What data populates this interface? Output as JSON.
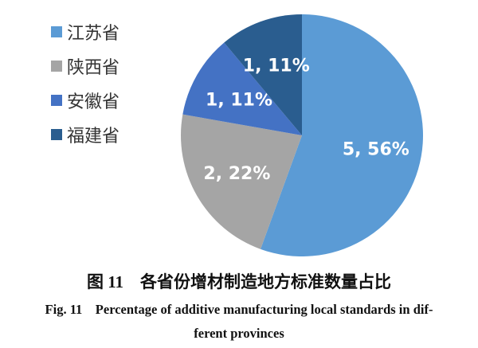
{
  "chart_data": {
    "type": "pie",
    "categories": [
      "江苏省",
      "陕西省",
      "安徽省",
      "福建省"
    ],
    "values": [
      5,
      2,
      1,
      1
    ],
    "percent_labels": [
      "5, 56%",
      "2, 22%",
      "1, 11%",
      "1, 11%"
    ],
    "colors": [
      "#5b9bd5",
      "#a5a5a5",
      "#4472c4",
      "#2a5d8f"
    ],
    "legend_position": "left"
  },
  "caption": {
    "cn": "图 11　各省份增材制造地方标准数量占比",
    "en_line1": "Fig. 11　Percentage of additive manufacturing local standards in dif-",
    "en_line2": "ferent provinces"
  }
}
